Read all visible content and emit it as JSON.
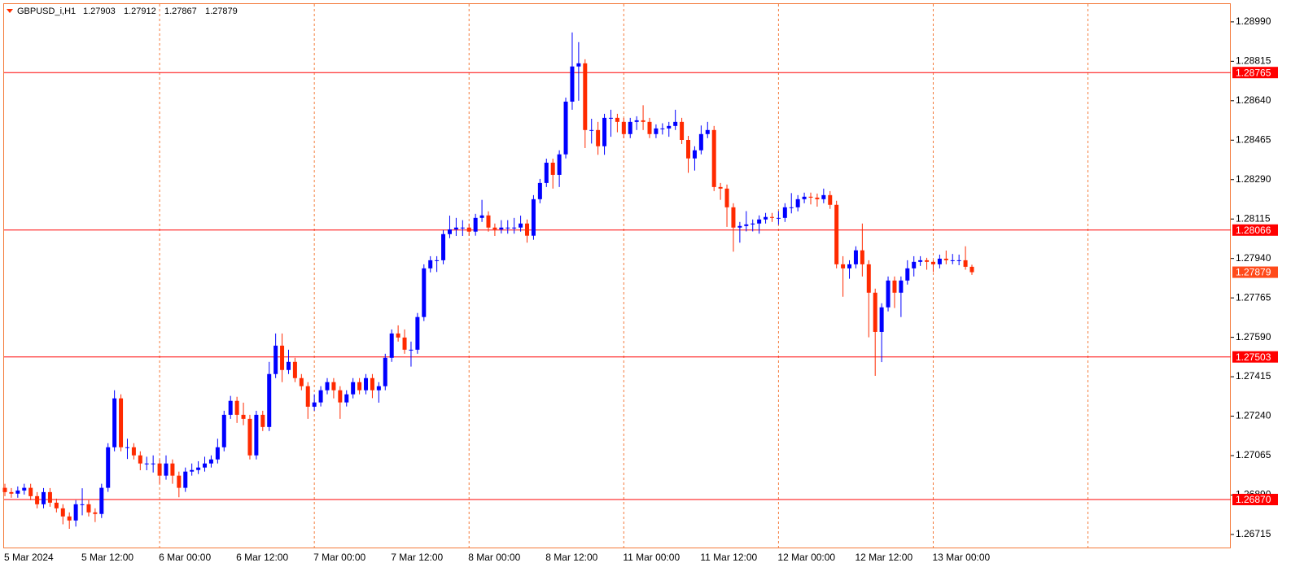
{
  "chart_data": {
    "type": "candlestick",
    "title": "GBPUSD_i,H1",
    "up_color": "#0000ff",
    "down_color": "#ff2a00",
    "level_color": "#ff0000",
    "last_color": "#ff4a1a",
    "grid": true,
    "categories": [
      "5 Mar 2024",
      null,
      null,
      null,
      null,
      null,
      null,
      null,
      null,
      null,
      null,
      null,
      "5 Mar 12:00",
      null,
      null,
      null,
      null,
      null,
      null,
      null,
      null,
      null,
      null,
      null,
      "6 Mar 00:00",
      null,
      null,
      null,
      null,
      null,
      null,
      null,
      null,
      null,
      null,
      null,
      "6 Mar 12:00",
      null,
      null,
      null,
      null,
      null,
      null,
      null,
      null,
      null,
      null,
      null,
      "7 Mar 00:00",
      null,
      null,
      null,
      null,
      null,
      null,
      null,
      null,
      null,
      null,
      null,
      "7 Mar 12:00",
      null,
      null,
      null,
      null,
      null,
      null,
      null,
      null,
      null,
      null,
      null,
      "8 Mar 00:00",
      null,
      null,
      null,
      null,
      null,
      null,
      null,
      null,
      null,
      null,
      null,
      "8 Mar 12:00",
      null,
      null,
      null,
      null,
      null,
      null,
      null,
      null,
      null,
      null,
      null,
      "11 Mar 00:00",
      null,
      null,
      null,
      null,
      null,
      null,
      null,
      null,
      null,
      null,
      null,
      "11 Mar 12:00",
      null,
      null,
      null,
      null,
      null,
      null,
      null,
      null,
      null,
      null,
      null,
      "12 Mar 00:00",
      null,
      null,
      null,
      null,
      null,
      null,
      null,
      null,
      null,
      null,
      null,
      "12 Mar 12:00",
      null,
      null,
      null,
      null,
      null,
      null,
      null,
      null,
      null,
      null,
      null,
      "13 Mar 00:00",
      null,
      null,
      null,
      null,
      null,
      null
    ],
    "ohlc": [
      [
        1.26922,
        1.2694,
        1.26885,
        1.26903
      ],
      [
        1.26903,
        1.26921,
        1.26878,
        1.26896
      ],
      [
        1.26896,
        1.26928,
        1.26878,
        1.2691
      ],
      [
        1.2691,
        1.2694,
        1.26892,
        1.26922
      ],
      [
        1.26922,
        1.2694,
        1.26867,
        1.26885
      ],
      [
        1.26885,
        1.26903,
        1.26831,
        1.26849
      ],
      [
        1.26849,
        1.26921,
        1.26831,
        1.26903
      ],
      [
        1.26903,
        1.26921,
        1.26838,
        1.26856
      ],
      [
        1.26856,
        1.26874,
        1.26813,
        1.26831
      ],
      [
        1.26831,
        1.26849,
        1.2676,
        1.26795
      ],
      [
        1.26795,
        1.26813,
        1.2674,
        1.26777
      ],
      [
        1.26777,
        1.26867,
        1.2675,
        1.26849
      ],
      [
        1.26849,
        1.2692,
        1.268,
        1.26849
      ],
      [
        1.26849,
        1.26867,
        1.26795,
        1.26813
      ],
      [
        1.26813,
        1.26831,
        1.2677,
        1.26806
      ],
      [
        1.26806,
        1.2694,
        1.26788,
        1.26922
      ],
      [
        1.26922,
        1.2712,
        1.26904,
        1.27102
      ],
      [
        1.27102,
        1.27355,
        1.27084,
        1.27319
      ],
      [
        1.27319,
        1.27337,
        1.27084,
        1.27102
      ],
      [
        1.27102,
        1.2714,
        1.2705,
        1.27102
      ],
      [
        1.27102,
        1.2712,
        1.27048,
        1.27066
      ],
      [
        1.27066,
        1.27084,
        1.27,
        1.2703
      ],
      [
        1.2703,
        1.2706,
        1.27,
        1.2703
      ],
      [
        1.2703,
        1.27066,
        1.2699,
        1.2703
      ],
      [
        1.2703,
        1.27048,
        1.2694,
        1.26976
      ],
      [
        1.26976,
        1.27066,
        1.26958,
        1.2703
      ],
      [
        1.2703,
        1.27048,
        1.2694,
        1.26976
      ],
      [
        1.26976,
        1.26994,
        1.2688,
        1.26922
      ],
      [
        1.26922,
        1.27012,
        1.26904,
        1.26994
      ],
      [
        1.26994,
        1.2703,
        1.26976,
        1.27001
      ],
      [
        1.27001,
        1.2704,
        1.26983,
        1.27012
      ],
      [
        1.27012,
        1.2706,
        1.26994,
        1.2703
      ],
      [
        1.2703,
        1.27066,
        1.27012,
        1.27048
      ],
      [
        1.27048,
        1.2714,
        1.2703,
        1.27102
      ],
      [
        1.27102,
        1.27264,
        1.27084,
        1.27246
      ],
      [
        1.27246,
        1.2733,
        1.27228,
        1.27308
      ],
      [
        1.27308,
        1.27326,
        1.2721,
        1.27246
      ],
      [
        1.27246,
        1.273,
        1.272,
        1.27228
      ],
      [
        1.27228,
        1.27246,
        1.27048,
        1.27066
      ],
      [
        1.27066,
        1.27264,
        1.27048,
        1.27246
      ],
      [
        1.27246,
        1.27264,
        1.27174,
        1.27192
      ],
      [
        1.27192,
        1.27481,
        1.27174,
        1.27427
      ],
      [
        1.27427,
        1.27607,
        1.27409,
        1.27553
      ],
      [
        1.27553,
        1.27607,
        1.27391,
        1.27445
      ],
      [
        1.27445,
        1.27535,
        1.27427,
        1.27481
      ],
      [
        1.27481,
        1.27499,
        1.27391,
        1.27409
      ],
      [
        1.27409,
        1.27427,
        1.27355,
        1.27373
      ],
      [
        1.27373,
        1.27391,
        1.27228,
        1.27282
      ],
      [
        1.27282,
        1.27337,
        1.27264,
        1.27301
      ],
      [
        1.27301,
        1.27373,
        1.27283,
        1.27355
      ],
      [
        1.27355,
        1.27409,
        1.27337,
        1.27391
      ],
      [
        1.27391,
        1.27409,
        1.27319,
        1.27355
      ],
      [
        1.27355,
        1.27373,
        1.27228,
        1.27301
      ],
      [
        1.27301,
        1.27355,
        1.27283,
        1.27337
      ],
      [
        1.27337,
        1.27409,
        1.27319,
        1.27391
      ],
      [
        1.27391,
        1.27409,
        1.27337,
        1.27355
      ],
      [
        1.27355,
        1.27427,
        1.27337,
        1.27409
      ],
      [
        1.27409,
        1.27427,
        1.2732,
        1.27355
      ],
      [
        1.27355,
        1.27391,
        1.273,
        1.27373
      ],
      [
        1.27373,
        1.27517,
        1.27355,
        1.27499
      ],
      [
        1.27499,
        1.27625,
        1.27481,
        1.27607
      ],
      [
        1.27607,
        1.27643,
        1.27571,
        1.27589
      ],
      [
        1.27589,
        1.27625,
        1.27517,
        1.27535
      ],
      [
        1.27535,
        1.27571,
        1.2746,
        1.27535
      ],
      [
        1.27535,
        1.27698,
        1.27517,
        1.2768
      ],
      [
        1.2768,
        1.27914,
        1.27662,
        1.27896
      ],
      [
        1.27896,
        1.2795,
        1.27878,
        1.27932
      ],
      [
        1.27932,
        1.2795,
        1.2788,
        1.27932
      ],
      [
        1.27932,
        1.28066,
        1.27914,
        1.28048
      ],
      [
        1.28048,
        1.2813,
        1.2803,
        1.28069
      ],
      [
        1.28069,
        1.2812,
        1.2804,
        1.28077
      ],
      [
        1.28077,
        1.2811,
        1.2804,
        1.28077
      ],
      [
        1.28077,
        1.28095,
        1.28041,
        1.28059
      ],
      [
        1.28059,
        1.28138,
        1.28041,
        1.2812
      ],
      [
        1.2812,
        1.282,
        1.28102,
        1.28131
      ],
      [
        1.28131,
        1.28149,
        1.28059,
        1.28077
      ],
      [
        1.28077,
        1.28095,
        1.2804,
        1.28069
      ],
      [
        1.28069,
        1.2811,
        1.28051,
        1.28077
      ],
      [
        1.28077,
        1.2811,
        1.2805,
        1.28077
      ],
      [
        1.28077,
        1.2812,
        1.2805,
        1.28077
      ],
      [
        1.28077,
        1.2813,
        1.28059,
        1.28095
      ],
      [
        1.28095,
        1.28113,
        1.2801,
        1.28041
      ],
      [
        1.28041,
        1.28221,
        1.28023,
        1.28203
      ],
      [
        1.28203,
        1.28293,
        1.28185,
        1.28275
      ],
      [
        1.28275,
        1.28383,
        1.28257,
        1.28365
      ],
      [
        1.28365,
        1.28383,
        1.2825,
        1.28311
      ],
      [
        1.28311,
        1.2842,
        1.28257,
        1.28402
      ],
      [
        1.28402,
        1.28654,
        1.28384,
        1.28636
      ],
      [
        1.28636,
        1.28943,
        1.286,
        1.28792
      ],
      [
        1.28792,
        1.289,
        1.2864,
        1.28806
      ],
      [
        1.28806,
        1.28824,
        1.2843,
        1.2851
      ],
      [
        1.2851,
        1.2856,
        1.2845,
        1.2851
      ],
      [
        1.2851,
        1.28546,
        1.284,
        1.28438
      ],
      [
        1.28438,
        1.28582,
        1.284,
        1.28564
      ],
      [
        1.28564,
        1.286,
        1.2848,
        1.28564
      ],
      [
        1.28564,
        1.28582,
        1.285,
        1.28546
      ],
      [
        1.28546,
        1.28564,
        1.28474,
        1.28492
      ],
      [
        1.28492,
        1.28564,
        1.28474,
        1.28546
      ],
      [
        1.28546,
        1.28571,
        1.2851,
        1.28553
      ],
      [
        1.28553,
        1.2862,
        1.2851,
        1.28546
      ],
      [
        1.28546,
        1.28564,
        1.28474,
        1.28492
      ],
      [
        1.28492,
        1.28535,
        1.28474,
        1.28517
      ],
      [
        1.28517,
        1.2854,
        1.2849,
        1.28517
      ],
      [
        1.28517,
        1.28546,
        1.2848,
        1.28528
      ],
      [
        1.28528,
        1.286,
        1.2851,
        1.28546
      ],
      [
        1.28546,
        1.28564,
        1.28448,
        1.28466
      ],
      [
        1.28466,
        1.28484,
        1.2832,
        1.28384
      ],
      [
        1.28384,
        1.28438,
        1.2833,
        1.2842
      ],
      [
        1.2842,
        1.2853,
        1.28402,
        1.28492
      ],
      [
        1.28492,
        1.28546,
        1.28474,
        1.2851
      ],
      [
        1.2851,
        1.28528,
        1.28239,
        1.28257
      ],
      [
        1.28257,
        1.28275,
        1.282,
        1.2825
      ],
      [
        1.2825,
        1.28268,
        1.2808,
        1.28167
      ],
      [
        1.28167,
        1.28185,
        1.2797,
        1.28077
      ],
      [
        1.28077,
        1.28102,
        1.2801,
        1.28084
      ],
      [
        1.28084,
        1.2815,
        1.2806,
        1.28091
      ],
      [
        1.28091,
        1.28113,
        1.2806,
        1.28095
      ],
      [
        1.28095,
        1.28131,
        1.2805,
        1.28113
      ],
      [
        1.28113,
        1.28142,
        1.28095,
        1.28124
      ],
      [
        1.28124,
        1.28142,
        1.28102,
        1.2812
      ],
      [
        1.2812,
        1.2815,
        1.2809,
        1.2812
      ],
      [
        1.2812,
        1.28185,
        1.28102,
        1.28167
      ],
      [
        1.28167,
        1.2823,
        1.2814,
        1.28167
      ],
      [
        1.28167,
        1.28221,
        1.28149,
        1.28203
      ],
      [
        1.28203,
        1.28232,
        1.28185,
        1.28214
      ],
      [
        1.28214,
        1.28232,
        1.2818,
        1.2821
      ],
      [
        1.2821,
        1.28228,
        1.2817,
        1.28203
      ],
      [
        1.28203,
        1.2825,
        1.28185,
        1.28221
      ],
      [
        1.28221,
        1.28239,
        1.2816,
        1.28178
      ],
      [
        1.28178,
        1.28196,
        1.27896,
        1.27914
      ],
      [
        1.27914,
        1.2795,
        1.2777,
        1.27896
      ],
      [
        1.27896,
        1.27932,
        1.2785,
        1.27914
      ],
      [
        1.27914,
        1.27994,
        1.27896,
        1.27976
      ],
      [
        1.27976,
        1.28095,
        1.2786,
        1.27914
      ],
      [
        1.27914,
        1.27932,
        1.2759,
        1.27788
      ],
      [
        1.27788,
        1.27806,
        1.27419,
        1.27614
      ],
      [
        1.27614,
        1.27741,
        1.2748,
        1.27723
      ],
      [
        1.27723,
        1.2786,
        1.27705,
        1.27842
      ],
      [
        1.27842,
        1.2786,
        1.2772,
        1.27788
      ],
      [
        1.27788,
        1.2786,
        1.2768,
        1.27842
      ],
      [
        1.27842,
        1.27932,
        1.27824,
        1.27896
      ],
      [
        1.27896,
        1.2795,
        1.2786,
        1.27925
      ],
      [
        1.27925,
        1.2795,
        1.27907,
        1.27932
      ],
      [
        1.27932,
        1.27943,
        1.2789,
        1.27925
      ],
      [
        1.27925,
        1.27932,
        1.2788,
        1.27914
      ],
      [
        1.27914,
        1.27957,
        1.27896,
        1.27939
      ],
      [
        1.27939,
        1.27975,
        1.27914,
        1.27932
      ],
      [
        1.27932,
        1.2796,
        1.27914,
        1.27932
      ],
      [
        1.27932,
        1.27957,
        1.2791,
        1.27932
      ],
      [
        1.27932,
        1.27994,
        1.2789,
        1.27903
      ],
      [
        1.27903,
        1.27912,
        1.27867,
        1.27879
      ]
    ],
    "ylim": [
      1.26657,
      1.29069
    ],
    "yticks": [
      {
        "value": 1.2899,
        "label": "1.28990"
      },
      1.28815,
      {
        "value": 1.2864,
        "label": "1.28640"
      },
      1.28465,
      {
        "value": 1.2829,
        "label": "1.28290"
      },
      1.28115,
      {
        "value": 1.2794,
        "label": "1.27940"
      },
      1.27765,
      {
        "value": 1.2759,
        "label": "1.27590"
      },
      1.27415,
      {
        "value": 1.2724,
        "label": "1.27240"
      },
      1.27065,
      {
        "value": 1.2689,
        "label": "1.26890"
      },
      1.26715
    ],
    "levels": [
      1.28765,
      1.28066,
      1.27503,
      {
        "value": 1.2687,
        "label": "1.26870"
      }
    ]
  }
}
